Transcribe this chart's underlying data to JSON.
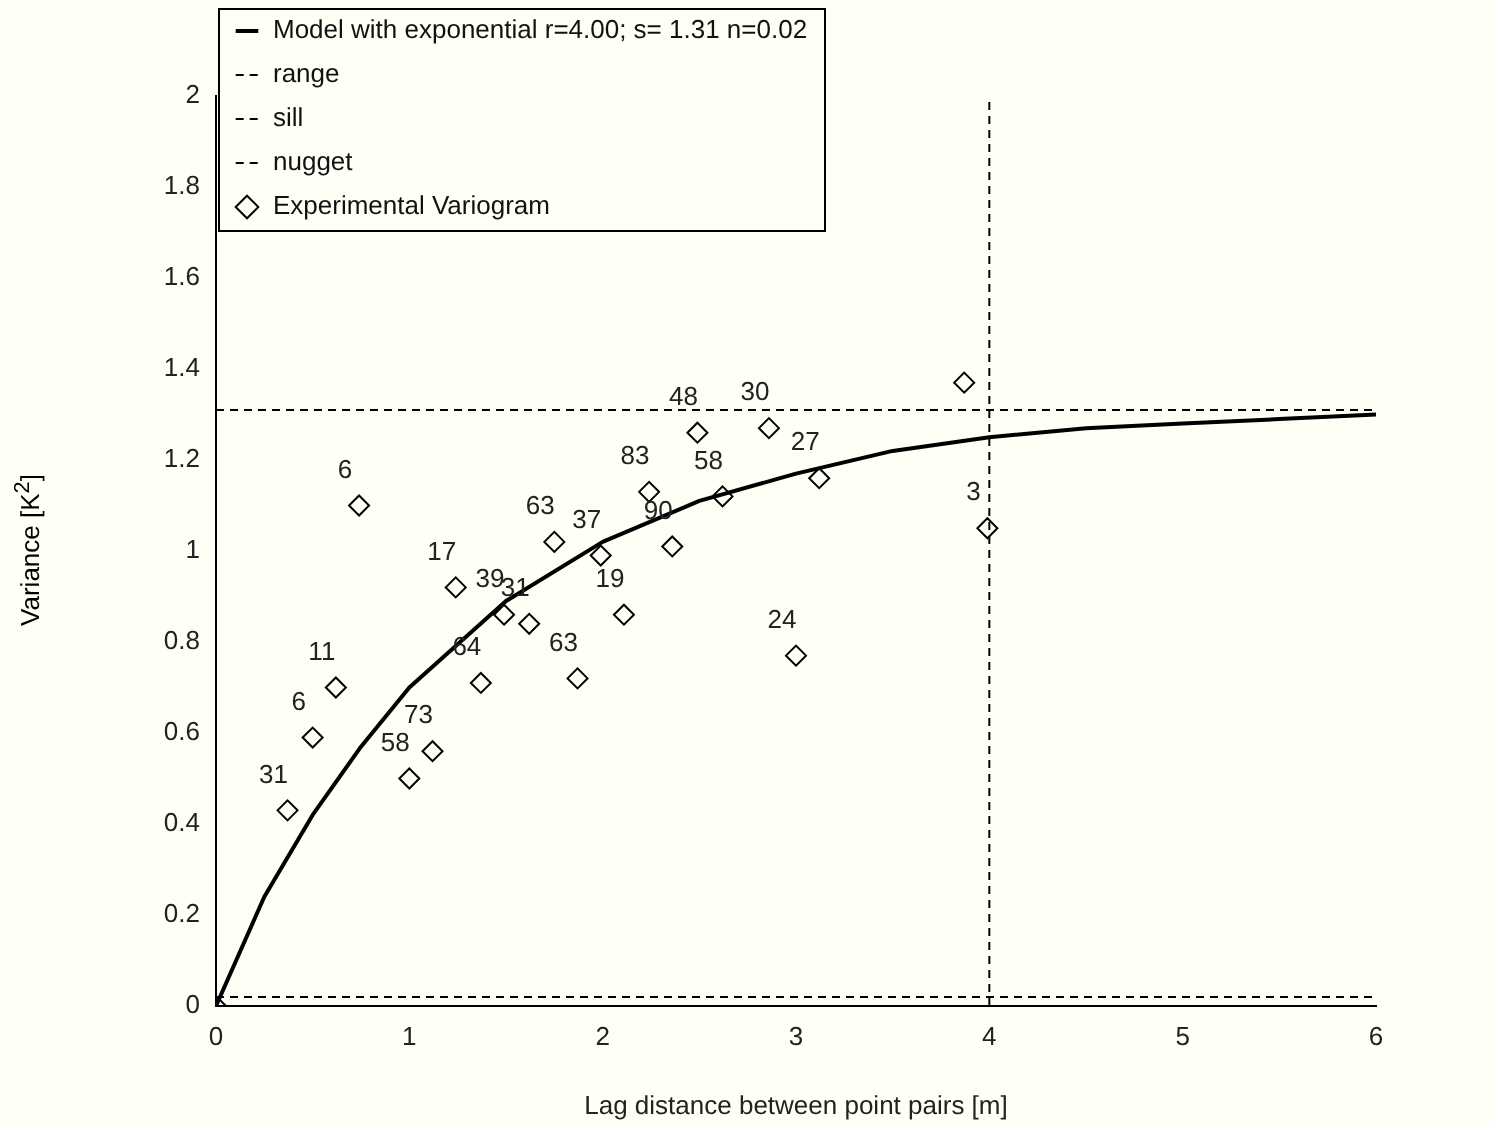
{
  "chart_data": {
    "type": "scatter",
    "xlabel": "Lag distance between point pairs [m]",
    "ylabel": "Variance [K$^{2}$]",
    "xlim": [
      0,
      6
    ],
    "xticks": [
      0,
      1,
      2,
      3,
      4,
      5,
      6
    ],
    "ylim": [
      0,
      2
    ],
    "yticks": [
      0,
      0.2,
      0.4,
      0.6,
      0.8,
      1,
      1.2,
      1.4,
      1.6,
      1.8,
      2
    ],
    "grid": false,
    "legend": "top left",
    "series": [
      {
        "name": "Model with exponential r=4.00; s= 1.31 n=0.02",
        "type": "line",
        "color": "#000000",
        "line_style": "solid",
        "marker": "none",
        "x": [
          0,
          0.25,
          0.5,
          0.75,
          1,
          1.5,
          2,
          2.5,
          3,
          3.5,
          4,
          4.5,
          5,
          5.5,
          6
        ],
        "values": [
          0,
          0.24,
          0.42,
          0.57,
          0.7,
          0.89,
          1.02,
          1.11,
          1.17,
          1.22,
          1.25,
          1.27,
          1.28,
          1.29,
          1.3
        ]
      },
      {
        "name": "Experimental Variogram",
        "type": "scatter",
        "color": "#000000",
        "marker": "diamond",
        "x": [
          0,
          0.37,
          0.5,
          0.62,
          0.74,
          1,
          1.12,
          1.24,
          1.37,
          1.49,
          1.62,
          1.75,
          1.87,
          1.99,
          2.11,
          2.24,
          2.36,
          2.49,
          2.62,
          2.86,
          3,
          3.12,
          3.87,
          3.99
        ],
        "values": [
          0,
          0.43,
          0.59,
          0.7,
          1.1,
          0.5,
          0.56,
          0.92,
          0.71,
          0.86,
          0.84,
          1.02,
          0.72,
          0.99,
          0.86,
          1.13,
          1.01,
          1.26,
          1.12,
          1.27,
          0.77,
          1.16,
          1.37,
          1.05
        ]
      }
    ],
    "annotations": [
      {
        "text": "31",
        "x": 0.37,
        "y": 0.43
      },
      {
        "text": "6",
        "x": 0.5,
        "y": 0.59
      },
      {
        "text": "11",
        "x": 0.62,
        "y": 0.7
      },
      {
        "text": "6",
        "x": 0.74,
        "y": 1.1
      },
      {
        "text": "58",
        "x": 1,
        "y": 0.5
      },
      {
        "text": "73",
        "x": 1.12,
        "y": 0.56
      },
      {
        "text": "17",
        "x": 1.24,
        "y": 0.92
      },
      {
        "text": "64",
        "x": 1.37,
        "y": 0.71
      },
      {
        "text": "39",
        "x": 1.49,
        "y": 0.86
      },
      {
        "text": "31",
        "x": 1.62,
        "y": 0.84
      },
      {
        "text": "63",
        "x": 1.75,
        "y": 1.02
      },
      {
        "text": "63",
        "x": 1.87,
        "y": 0.72
      },
      {
        "text": "37",
        "x": 1.99,
        "y": 0.99
      },
      {
        "text": "19",
        "x": 2.11,
        "y": 0.86
      },
      {
        "text": "83",
        "x": 2.24,
        "y": 1.13
      },
      {
        "text": "90",
        "x": 2.36,
        "y": 1.01
      },
      {
        "text": "48",
        "x": 2.49,
        "y": 1.26
      },
      {
        "text": "58",
        "x": 2.62,
        "y": 1.12
      },
      {
        "text": "30",
        "x": 2.86,
        "y": 1.27
      },
      {
        "text": "24",
        "x": 3,
        "y": 0.77
      },
      {
        "text": "27",
        "x": 3.12,
        "y": 1.16
      },
      {
        "text": "3",
        "x": 3.99,
        "y": 1.05
      }
    ],
    "ref_lines": [
      {
        "axis": "x",
        "value": 4,
        "label": "range",
        "color": "#000000",
        "line_style": "dashed"
      },
      {
        "axis": "y",
        "value": 1.31,
        "label": "sill",
        "color": "#000000",
        "line_style": "dashed"
      },
      {
        "axis": "y",
        "value": 0.02,
        "label": "nugget",
        "color": "#000000",
        "line_style": "dashed"
      }
    ]
  }
}
